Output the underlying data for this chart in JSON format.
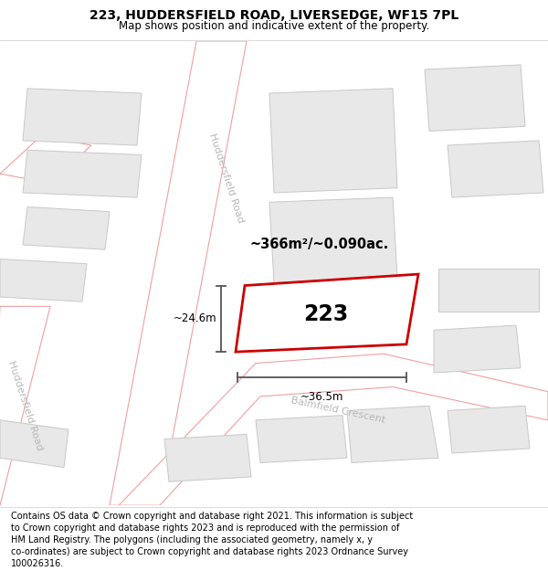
{
  "title": "223, HUDDERSFIELD ROAD, LIVERSEDGE, WF15 7PL",
  "subtitle": "Map shows position and indicative extent of the property.",
  "footer": "Contains OS data © Crown copyright and database right 2021. This information is subject\nto Crown copyright and database rights 2023 and is reproduced with the permission of\nHM Land Registry. The polygons (including the associated geometry, namely x, y\nco-ordinates) are subject to Crown copyright and database rights 2023 Ordnance Survey\n100026316.",
  "map_bg": "#f7f0f0",
  "road_fill": "#ffffff",
  "road_stroke": "#f0a0a0",
  "road_center_color": "#d0d0d0",
  "building_fill": "#e8e8e8",
  "building_stroke": "#c8c8c8",
  "highlighted_fill": "#ffffff",
  "highlighted_stroke": "#cc0000",
  "road_label_color": "#b8b8b8",
  "dim_color": "#555555",
  "area_text": "~366m²/~0.090ac.",
  "plot_label": "223",
  "dim_width": "~36.5m",
  "dim_height": "~24.6m",
  "title_fontsize": 10,
  "subtitle_fontsize": 8.5,
  "footer_fontsize": 7.0
}
